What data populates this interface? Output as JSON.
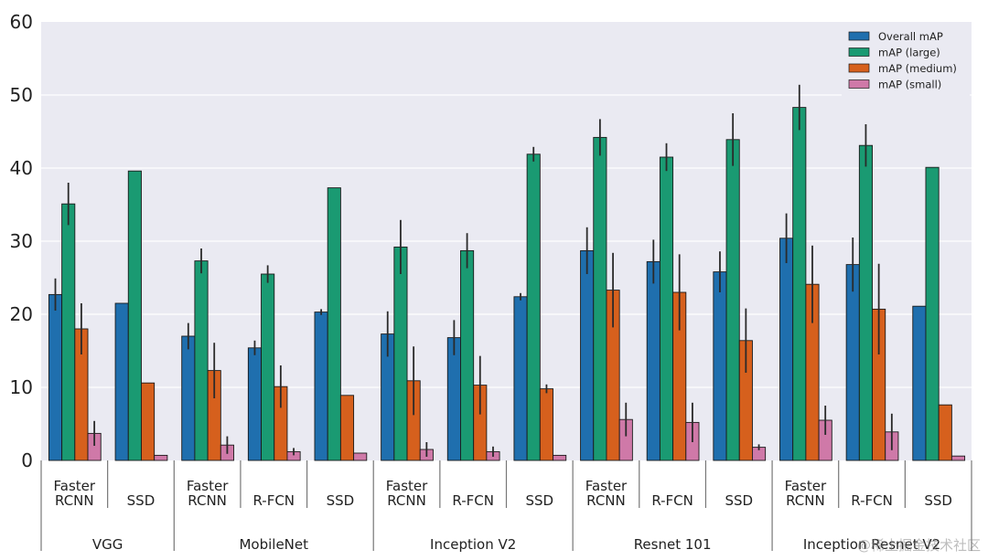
{
  "chart_data": {
    "type": "bar",
    "title": "",
    "xlabel": "",
    "ylabel": "",
    "ylim": [
      0,
      60
    ],
    "yticks": [
      0,
      10,
      20,
      30,
      40,
      50,
      60
    ],
    "grid": true,
    "legend_position": "top-right",
    "colors": {
      "overall": "#1f6fae",
      "large": "#1a9a72",
      "medium": "#d6601d",
      "small": "#cf79a8",
      "plot_background": "#eaeaf2"
    },
    "series": [
      {
        "name": "Overall mAP",
        "key": "overall"
      },
      {
        "name": "mAP (large)",
        "key": "large"
      },
      {
        "name": "mAP (medium)",
        "key": "medium"
      },
      {
        "name": "mAP (small)",
        "key": "small"
      }
    ],
    "groups": [
      {
        "label": "VGG",
        "models": [
          {
            "label": "Faster\nRCNN",
            "values": [
              22.7,
              35.1,
              18.0,
              3.7
            ],
            "errors": [
              2.2,
              2.9,
              3.5,
              1.7
            ]
          },
          {
            "label": "SSD",
            "values": [
              21.5,
              39.6,
              10.6,
              0.7
            ],
            "errors": [
              0,
              0,
              0,
              0
            ]
          }
        ]
      },
      {
        "label": "MobileNet",
        "models": [
          {
            "label": "Faster\nRCNN",
            "values": [
              17.0,
              27.3,
              12.3,
              2.1
            ],
            "errors": [
              1.8,
              1.7,
              3.8,
              1.2
            ]
          },
          {
            "label": "R-FCN",
            "values": [
              15.4,
              25.5,
              10.1,
              1.2
            ],
            "errors": [
              1.0,
              1.2,
              2.9,
              0.5
            ]
          },
          {
            "label": "SSD",
            "values": [
              20.3,
              37.3,
              8.9,
              1.0
            ],
            "errors": [
              0.4,
              0,
              0,
              0
            ]
          }
        ]
      },
      {
        "label": "Inception V2",
        "models": [
          {
            "label": "Faster\nRCNN",
            "values": [
              17.3,
              29.2,
              10.9,
              1.5
            ],
            "errors": [
              3.1,
              3.7,
              4.7,
              1.0
            ]
          },
          {
            "label": "R-FCN",
            "values": [
              16.8,
              28.7,
              10.3,
              1.2
            ],
            "errors": [
              2.4,
              2.4,
              4.0,
              0.7
            ]
          },
          {
            "label": "SSD",
            "values": [
              22.4,
              41.9,
              9.8,
              0.7
            ],
            "errors": [
              0.5,
              1.0,
              0.6,
              0
            ]
          }
        ]
      },
      {
        "label": "Resnet 101",
        "models": [
          {
            "label": "Faster\nRCNN",
            "values": [
              28.7,
              44.2,
              23.3,
              5.6
            ],
            "errors": [
              3.2,
              2.5,
              5.1,
              2.3
            ]
          },
          {
            "label": "R-FCN",
            "values": [
              27.2,
              41.5,
              23.0,
              5.2
            ],
            "errors": [
              3.0,
              1.9,
              5.2,
              2.7
            ]
          },
          {
            "label": "SSD",
            "values": [
              25.8,
              43.9,
              16.4,
              1.8
            ],
            "errors": [
              2.8,
              3.6,
              4.4,
              0.4
            ]
          }
        ]
      },
      {
        "label": "Inception Resnet V2",
        "models": [
          {
            "label": "Faster\nRCNN",
            "values": [
              30.4,
              48.3,
              24.1,
              5.5
            ],
            "errors": [
              3.4,
              3.1,
              5.3,
              2.0
            ]
          },
          {
            "label": "R-FCN",
            "values": [
              26.8,
              43.1,
              20.7,
              3.9
            ],
            "errors": [
              3.7,
              2.9,
              6.2,
              2.5
            ]
          },
          {
            "label": "SSD",
            "values": [
              21.1,
              40.1,
              7.6,
              0.6
            ],
            "errors": [
              0,
              0,
              0,
              0
            ]
          }
        ]
      }
    ]
  },
  "watermark": "@稀土掘金技术社区"
}
